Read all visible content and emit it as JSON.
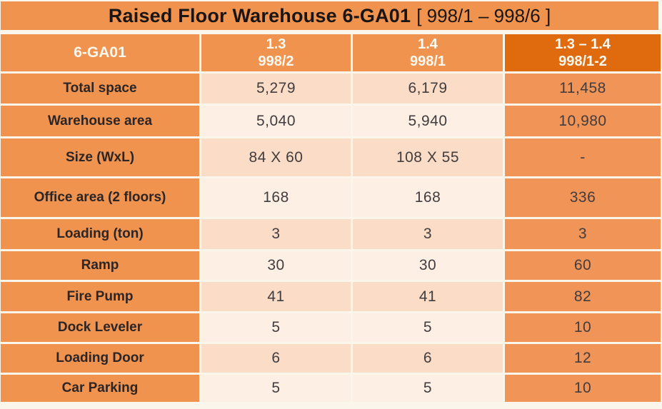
{
  "title": {
    "main": "Raised Floor Warehouse 6-GA01",
    "bracket": "[ 998/1 – 998/6 ]"
  },
  "table": {
    "header": {
      "col0": "6-GA01",
      "col1_line1": "1.3",
      "col1_line2": "998/2",
      "col2_line1": "1.4",
      "col2_line2": "998/1",
      "col3_line1": "1.3 – 1.4",
      "col3_line2": "998/1-2"
    },
    "rows": [
      {
        "label": "Total space",
        "v1": "5,279",
        "v2": "6,179",
        "v3": "11,458"
      },
      {
        "label": "Warehouse area",
        "v1": "5,040",
        "v2": "5,940",
        "v3": "10,980"
      },
      {
        "label": "Size (WxL)",
        "v1": "84 X 60",
        "v2": "108 X 55",
        "v3": "-"
      },
      {
        "label": "Office area (2 floors)",
        "v1": "168",
        "v2": "168",
        "v3": "336"
      },
      {
        "label": "Loading (ton)",
        "v1": "3",
        "v2": "3",
        "v3": "3"
      },
      {
        "label": "Ramp",
        "v1": "30",
        "v2": "30",
        "v3": "60"
      },
      {
        "label": "Fire Pump",
        "v1": "41",
        "v2": "41",
        "v3": "82"
      },
      {
        "label": "Dock Leveler",
        "v1": "5",
        "v2": "5",
        "v3": "10"
      },
      {
        "label": "Loading Door",
        "v1": "6",
        "v2": "6",
        "v3": "12"
      },
      {
        "label": "Car Parking",
        "v1": "5",
        "v2": "5",
        "v3": "10"
      }
    ]
  },
  "colors": {
    "page_background": "#FBF6EB",
    "orange_main": "#F0934E",
    "orange_dark": "#E06B0E",
    "orange_last_column": "#F19458",
    "row_peach": "#FBDCC7",
    "row_light": "#FDEFE4",
    "title_text": "#1A1512",
    "header_text": "#FDF8F0",
    "label_text": "#2B2526",
    "data_text": "#413C3E"
  }
}
